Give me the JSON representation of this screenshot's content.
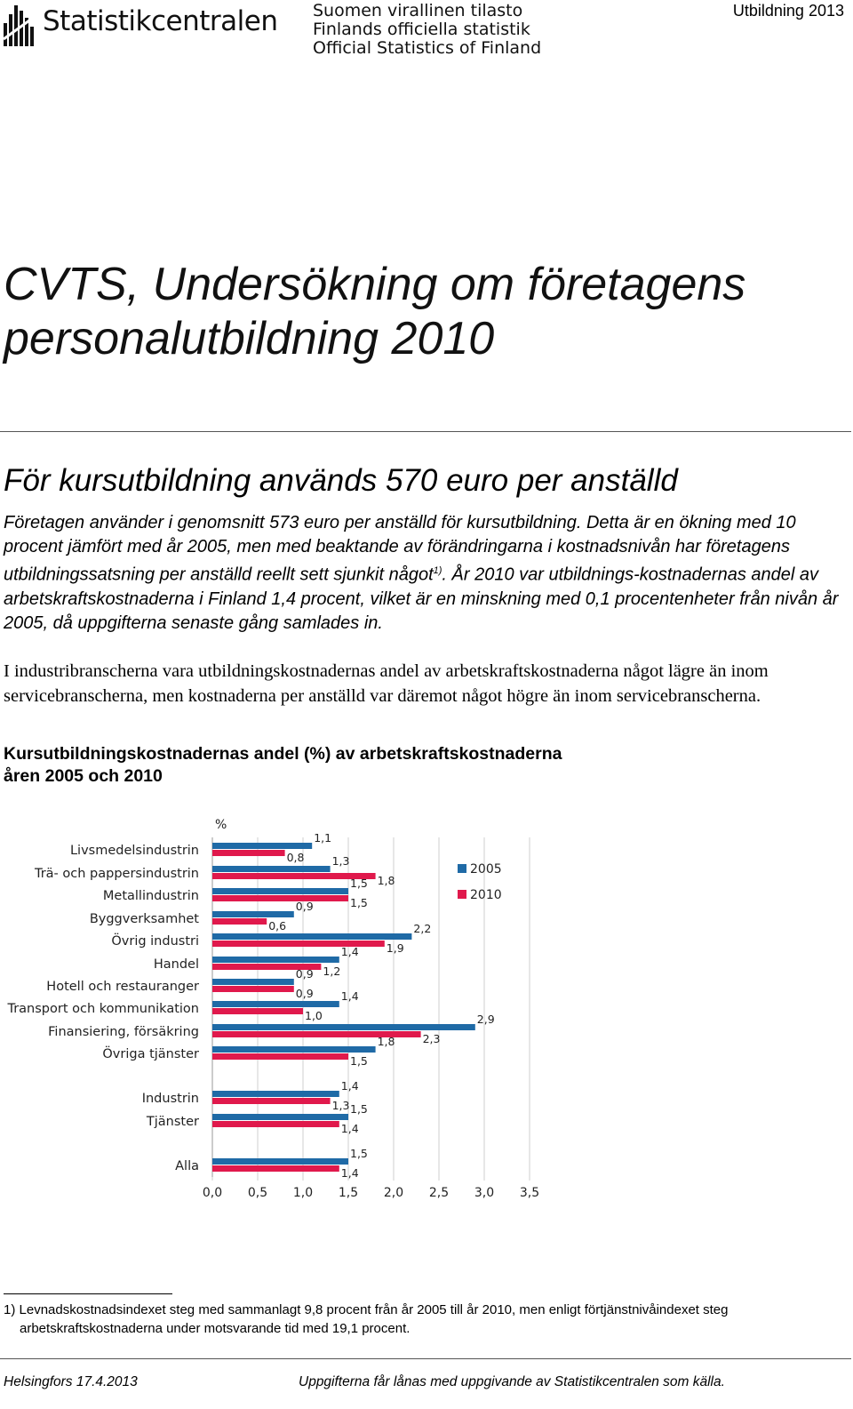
{
  "header": {
    "brand_name": "Statistikcentralen",
    "official_lines": [
      "Suomen virallinen tilasto",
      "Finlands officiella statistik",
      "Official Statistics of Finland"
    ],
    "series_label": "Utbildning 2013"
  },
  "main_title": "CVTS, Undersökning om företagens personalutbildning 2010",
  "subtitle": "För kursutbildning används 570 euro per anställd",
  "lead": {
    "before_sup": "Företagen använder i genomsnitt 573 euro per anställd för kursutbildning. Detta är en ökning med 10 procent jämfört med år 2005, men med beaktande av förändringarna i kostnadsnivån har företagens utbildningssatsning per anställd reellt sett sjunkit något",
    "sup": "1)",
    "after_sup": ". År 2010 var utbildnings-kostnadernas andel av arbetskraftskostnaderna i Finland 1,4 procent, vilket är en minskning med 0,1 procentenheter från nivån år 2005, då uppgifterna senaste gång samlades in."
  },
  "body_text": "I industribranscherna vara utbildningskostnadernas andel av arbetskraftskostnaderna något lägre än inom servicebranscherna, men kostnaderna per anställd var däremot något högre än inom servicebranscherna.",
  "chart_title_lines": [
    "Kursutbildningskostnadernas andel (%) av arbetskraftskostnaderna",
    "åren 2005 och 2010"
  ],
  "chart_data": {
    "type": "bar",
    "orientation": "horizontal",
    "unit_label": "%",
    "categories": [
      "Livsmedelsindustrin",
      "Trä- och pappersindustrin",
      "Metallindustrin",
      "Byggverksamhet",
      "Övrig industri",
      "Handel",
      "Hotell och restauranger",
      "Transport och kommunikation",
      "Finansiering, försäkring",
      "Övriga tjänster",
      "Industrin",
      "Tjänster",
      "Alla"
    ],
    "series": [
      {
        "name": "2005",
        "color": "#1f6aa6",
        "values": [
          1.1,
          1.3,
          1.5,
          0.9,
          2.2,
          1.4,
          0.9,
          1.4,
          2.9,
          1.8,
          1.4,
          1.5,
          1.5
        ],
        "labels": [
          "1,1",
          "1,3",
          "1,5",
          "0,9",
          "2,2",
          "1,4",
          "0,9",
          "1,4",
          "2,9",
          "1,8",
          "1,4",
          "1,5",
          "1,5"
        ]
      },
      {
        "name": "2010",
        "color": "#e0194c",
        "values": [
          0.8,
          1.8,
          1.5,
          0.6,
          1.9,
          1.2,
          0.9,
          1.0,
          2.3,
          1.5,
          1.3,
          1.4,
          1.4
        ],
        "labels": [
          "0,8",
          "1,8",
          "1,5",
          "0,6",
          "1,9",
          "1,2",
          "0,9",
          "1,0",
          "2,3",
          "1,5",
          "1,3",
          "1,4",
          "1,4"
        ]
      }
    ],
    "xlim": [
      0,
      3.5
    ],
    "xticks": [
      "0,0",
      "0,5",
      "1,0",
      "1,5",
      "2,0",
      "2,5",
      "3,0",
      "3,5"
    ],
    "grid": true,
    "legend_position": "right"
  },
  "footnote": {
    "marker": "1)",
    "line1": "Levnadskostnadsindexet steg med sammanlagt 9,8 procent från år 2005 till år 2010, men enligt förtjänstnivåindexet steg",
    "line2": "arbetskraftskostnaderna under motsvarande tid med 19,1 procent."
  },
  "footer": {
    "place_date": "Helsingfors 17.4.2013",
    "notice": "Uppgifterna får lånas med uppgivande av Statistikcentralen som källa."
  }
}
